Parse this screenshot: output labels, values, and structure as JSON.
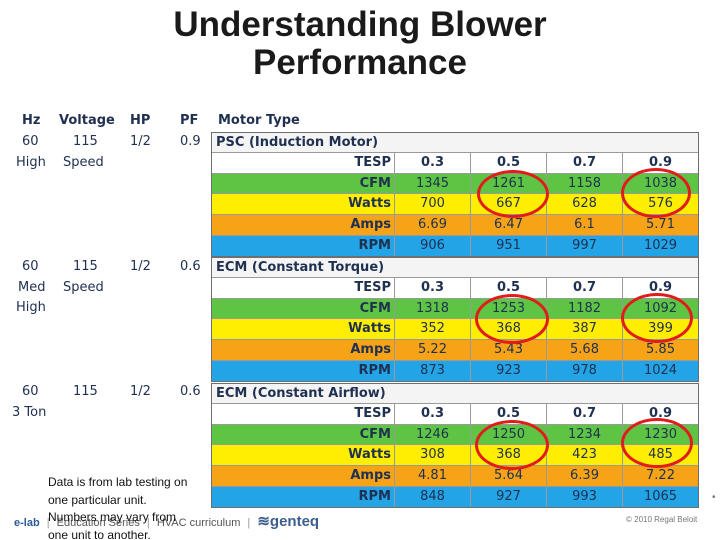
{
  "title": {
    "line1": "Understanding Blower",
    "line2": "Performance"
  },
  "columns": {
    "hz": "Hz",
    "voltage": "Voltage",
    "hp": "HP",
    "pf": "PF",
    "motor_type": "Motor Type"
  },
  "specs": [
    {
      "hz": "60",
      "voltage": "115",
      "hp": "1/2",
      "pf": "0.9",
      "lines": [
        "High",
        "Speed"
      ],
      "ton_line": ""
    },
    {
      "hz": "60",
      "voltage": "115",
      "hp": "1/2",
      "pf": "0.6",
      "lines": [
        "Med",
        "Speed",
        "High"
      ],
      "ton_line": ""
    },
    {
      "hz": "60",
      "voltage": "115",
      "hp": "1/2",
      "pf": "0.6",
      "lines": [
        "3 Ton"
      ],
      "ton_line": ""
    }
  ],
  "motors": [
    {
      "name": "PSC (Induction Motor)",
      "rows": [
        {
          "label": "TESP",
          "values": [
            "0.3",
            "0.5",
            "0.7",
            "0.9"
          ]
        },
        {
          "label": "CFM",
          "values": [
            "1345",
            "1261",
            "1158",
            "1038"
          ]
        },
        {
          "label": "Watts",
          "values": [
            "700",
            "667",
            "628",
            "576"
          ]
        },
        {
          "label": "Amps",
          "values": [
            "6.69",
            "6.47",
            "6.1",
            "5.71"
          ]
        },
        {
          "label": "RPM",
          "values": [
            "906",
            "951",
            "997",
            "1029"
          ]
        }
      ]
    },
    {
      "name": "ECM (Constant Torque)",
      "rows": [
        {
          "label": "TESP",
          "values": [
            "0.3",
            "0.5",
            "0.7",
            "0.9"
          ]
        },
        {
          "label": "CFM",
          "values": [
            "1318",
            "1253",
            "1182",
            "1092"
          ]
        },
        {
          "label": "Watts",
          "values": [
            "352",
            "368",
            "387",
            "399"
          ]
        },
        {
          "label": "Amps",
          "values": [
            "5.22",
            "5.43",
            "5.68",
            "5.85"
          ]
        },
        {
          "label": "RPM",
          "values": [
            "873",
            "923",
            "978",
            "1024"
          ]
        }
      ]
    },
    {
      "name": "ECM (Constant Airflow)",
      "rows": [
        {
          "label": "TESP",
          "values": [
            "0.3",
            "0.5",
            "0.7",
            "0.9"
          ]
        },
        {
          "label": "CFM",
          "values": [
            "1246",
            "1250",
            "1234",
            "1230"
          ]
        },
        {
          "label": "Watts",
          "values": [
            "308",
            "368",
            "423",
            "485"
          ]
        },
        {
          "label": "Amps",
          "values": [
            "4.81",
            "5.64",
            "6.39",
            "7.22"
          ]
        },
        {
          "label": "RPM",
          "values": [
            "848",
            "927",
            "993",
            "1065"
          ]
        }
      ]
    }
  ],
  "note": {
    "line1": "Data is from lab testing on",
    "line2": "one particular unit.",
    "line3": "Numbers may vary from",
    "line4": "one unit to another."
  },
  "footer": {
    "brand": "e-lab",
    "section": "Education Series",
    "curriculum": "HVAC curriculum",
    "company": "genteq",
    "copyright": "© 2010 Regal Beloit"
  },
  "highlight_color": "#e11c1c",
  "row_colors": {
    "CFM": "#5ec544",
    "Watts": "#ffee00",
    "Amps": "#f6a318",
    "RPM": "#23a4e6"
  }
}
